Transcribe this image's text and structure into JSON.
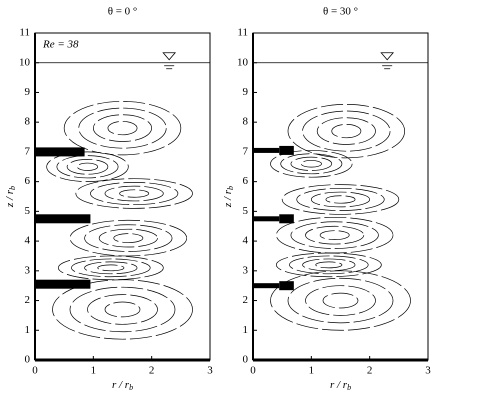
{
  "chart_data": [
    {
      "type": "streamline",
      "title": "θ = 0 °",
      "annotation": "Re = 38",
      "x_label": {
        "text": "r / r",
        "sub": "b"
      },
      "y_label": {
        "text": "z / r",
        "sub": "b"
      },
      "xlim": [
        0,
        3
      ],
      "ylim": [
        0,
        11
      ],
      "xticks": [
        0,
        1,
        2,
        3
      ],
      "yticks": [
        0,
        1,
        2,
        3,
        4,
        5,
        6,
        7,
        8,
        9,
        10,
        11
      ]
    },
    {
      "type": "streamline",
      "title": "θ = 30 °",
      "x_label": {
        "text": "r / r",
        "sub": "b"
      },
      "y_label": {
        "text": "z / r",
        "sub": "b"
      },
      "xlim": [
        0,
        3
      ],
      "ylim": [
        0,
        11
      ],
      "xticks": [
        0,
        1,
        2,
        3
      ],
      "yticks": [
        0,
        1,
        2,
        3,
        4,
        5,
        6,
        7,
        8,
        9,
        10,
        11
      ]
    }
  ]
}
